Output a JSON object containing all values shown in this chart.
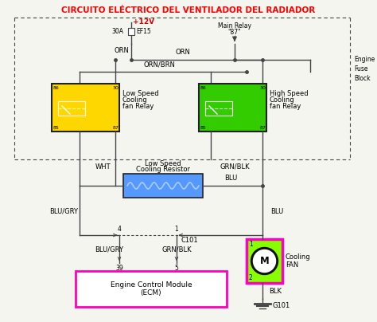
{
  "title": "CIRCUITO ELÉCTRICO DEL VENTILADOR DEL RADIADOR",
  "title_color": "#FF0000",
  "bg_color": "#F5F5F0",
  "wire_color": "#444444",
  "low_relay_color": "#FFD700",
  "high_relay_color": "#33CC00",
  "resistor_color": "#5599FF",
  "ecm_border_color": "#FF00BB",
  "fan_border_color": "#FF00BB",
  "fan_bg_color": "#88FF00",
  "labels": {
    "plus12v": "+12V",
    "fuse_30a": "30A",
    "fuse_ef15": "EF15",
    "main_relay": "Main Relay",
    "main_relay2": "\"87\"",
    "orn1": "ORN",
    "orn2": "ORN",
    "orn_brn": "ORN/BRN",
    "low_relay_line1": "Low Speed",
    "low_relay_line2": "Cooling",
    "low_relay_line3": "fan Relay",
    "high_relay_line1": "High Speed",
    "high_relay_line2": "Cooling",
    "high_relay_line3": "fan Relay",
    "wht": "WHT",
    "grn_blk1": "GRN/BLK",
    "low_res_line1": "Low Speed",
    "low_res_line2": "Cooling Resistor",
    "blu1": "BLU",
    "blu_gry1": "BLU/GRY",
    "blu2": "BLU",
    "blu_gry2": "BLU/GRY",
    "grn_blk2": "GRN/BLK",
    "c101": "C101",
    "ecm_line1": "Engine Control Module",
    "ecm_line2": "(ECM)",
    "fan_label": "Cooling\nFAN",
    "blk": "BLK",
    "g101": "G101",
    "engine_fuse1": "Engine",
    "engine_fuse2": "Fuse",
    "engine_fuse3": "Block",
    "p86l": "86",
    "p30l": "30",
    "p85l": "85",
    "p87l": "87",
    "p86h": "86",
    "p30h": "30",
    "p85h": "85",
    "p87h": "87",
    "p4": "4",
    "p1": "1",
    "p39": "39",
    "p5": "5",
    "pf1": "1",
    "pf2": "2"
  }
}
